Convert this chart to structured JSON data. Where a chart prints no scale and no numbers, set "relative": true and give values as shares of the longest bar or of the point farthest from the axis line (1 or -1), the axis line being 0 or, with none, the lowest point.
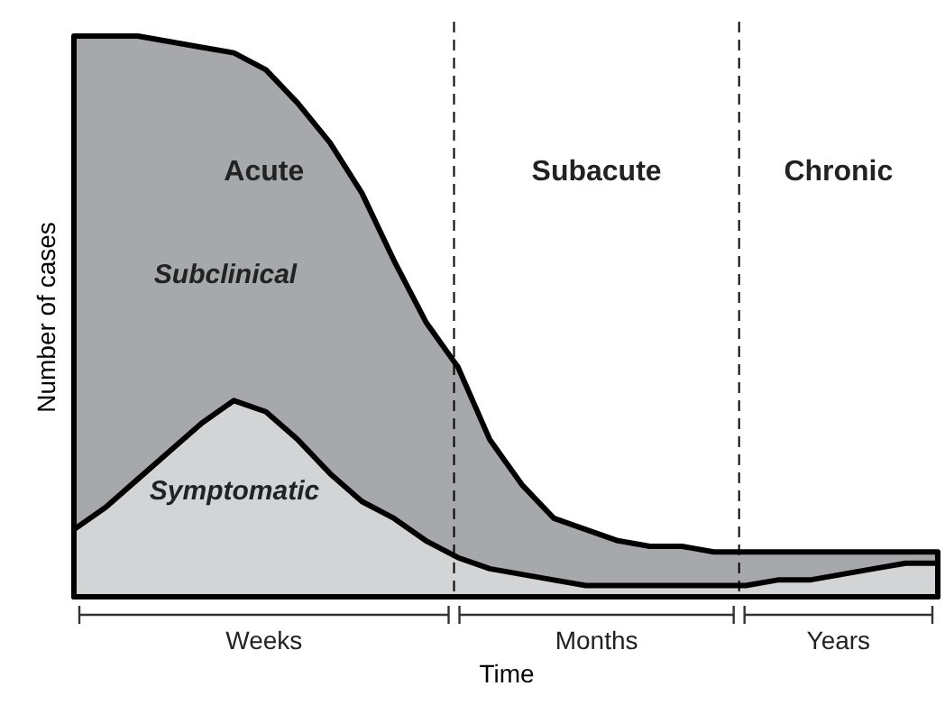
{
  "chart_data": {
    "type": "area",
    "relative": true,
    "xlabel": "Time",
    "ylabel": "Number of cases",
    "categories": [
      null,
      null,
      null,
      null,
      null,
      null,
      null,
      null,
      null,
      null,
      null,
      null,
      null,
      null,
      null,
      null,
      null,
      null,
      null,
      null,
      null,
      null,
      null,
      null,
      null,
      null,
      null,
      null
    ],
    "series": [
      {
        "name": "Subclinical",
        "color": "#a7a8ab",
        "values": [
          1.0,
          1.0,
          1.0,
          0.99,
          0.98,
          0.97,
          0.94,
          0.88,
          0.81,
          0.72,
          0.6,
          0.49,
          0.41,
          0.28,
          0.2,
          0.14,
          0.12,
          0.1,
          0.09,
          0.09,
          0.08,
          0.08,
          0.08,
          0.08,
          0.08,
          0.08,
          0.08,
          0.08
        ]
      },
      {
        "name": "Symptomatic",
        "color": "#d3d4d6",
        "values": [
          0.12,
          0.16,
          0.21,
          0.26,
          0.31,
          0.35,
          0.33,
          0.28,
          0.22,
          0.17,
          0.14,
          0.1,
          0.07,
          0.05,
          0.04,
          0.03,
          0.02,
          0.02,
          0.02,
          0.02,
          0.02,
          0.02,
          0.03,
          0.03,
          0.04,
          0.05,
          0.06,
          0.06
        ]
      }
    ],
    "annotations": [
      "Acute",
      "Subacute",
      "Chronic",
      "Weeks",
      "Months",
      "Years"
    ]
  }
}
